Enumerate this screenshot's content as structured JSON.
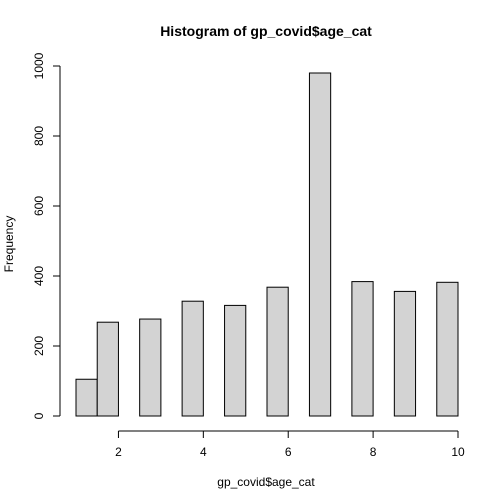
{
  "chart_data": {
    "type": "bar",
    "title": "Histogram of gp_covid$age_cat",
    "xlabel": "gp_covid$age_cat",
    "ylabel": "Frequency",
    "bin_edges": [
      1,
      1.5,
      2,
      2.5,
      3,
      3.5,
      4,
      4.5,
      5,
      5.5,
      6,
      6.5,
      7,
      7.5,
      8,
      8.5,
      9,
      9.5,
      10
    ],
    "values": [
      105,
      268,
      0,
      277,
      0,
      328,
      0,
      316,
      0,
      368,
      0,
      980,
      0,
      384,
      0,
      356,
      0,
      382
    ],
    "xlim": [
      1,
      10
    ],
    "ylim": [
      0,
      1000
    ],
    "x_ticks": [
      2,
      4,
      6,
      8,
      10
    ],
    "y_ticks": [
      0,
      200,
      400,
      600,
      800,
      1000
    ],
    "bar_fill": "#d3d3d3",
    "grid": false
  }
}
